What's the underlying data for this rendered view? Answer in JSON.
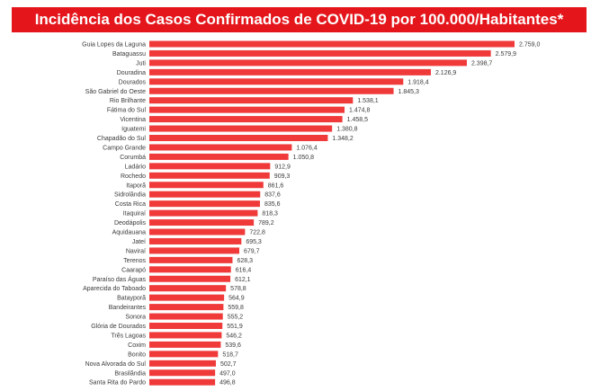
{
  "title": "Incidência dos Casos Confirmados de COVID-19 por 100.000/Habitantes*",
  "colors": {
    "title_bg": "#e4161c",
    "bar": "#f03a3a",
    "text": "#3a3a3a"
  },
  "chart_data": {
    "type": "bar",
    "orientation": "horizontal",
    "title": "Incidência dos Casos Confirmados de COVID-19 por 100.000/Habitantes*",
    "xlabel": "",
    "ylabel": "",
    "grid": false,
    "xlim": [
      0,
      2900
    ],
    "categories": [
      "Guia Lopes da Laguna",
      "Bataguassu",
      "Juti",
      "Douradina",
      "Dourados",
      "São Gabriel do Oeste",
      "Rio Brilhante",
      "Fátima do Sul",
      "Vicentina",
      "Iguatemi",
      "Chapadão do Sul",
      "Campo Grande",
      "Corumbá",
      "Ladário",
      "Rochedo",
      "Itaporã",
      "Sidrolândia",
      "Costa Rica",
      "Itaquiraí",
      "Deodápolis",
      "Aquidauana",
      "Jateí",
      "Naviraí",
      "Terenos",
      "Caarapó",
      "Paraíso das Águas",
      "Aparecida do Taboado",
      "Batayporã",
      "Bandeirantes",
      "Sonora",
      "Glória de Dourados",
      "Três Lagoas",
      "Coxim",
      "Bonito",
      "Nova Alvorada do Sul",
      "Brasilândia",
      "Santa Rita do Pardo"
    ],
    "values": [
      2759.0,
      2579.9,
      2398.7,
      2126.9,
      1918.4,
      1845.3,
      1538.1,
      1474.8,
      1458.5,
      1380.8,
      1348.2,
      1076.4,
      1050.8,
      912.9,
      909.3,
      861.6,
      837.6,
      835.6,
      818.3,
      789.2,
      722.8,
      695.3,
      679.7,
      628.3,
      616.4,
      612.1,
      578.8,
      564.9,
      559.8,
      555.2,
      551.9,
      546.2,
      539.6,
      518.7,
      502.7,
      497.0,
      496.8
    ],
    "value_labels": [
      "2.759,0",
      "2.579,9",
      "2.398,7",
      "2.126,9",
      "1.918,4",
      "1.845,3",
      "1.538,1",
      "1.474,8",
      "1.458,5",
      "1.380,8",
      "1.348,2",
      "1.076,4",
      "1.050,8",
      "912,9",
      "909,3",
      "861,6",
      "837,6",
      "835,6",
      "818,3",
      "789,2",
      "722,8",
      "695,3",
      "679,7",
      "628,3",
      "616,4",
      "612,1",
      "578,8",
      "564,9",
      "559,8",
      "555,2",
      "551,9",
      "546,2",
      "539,6",
      "518,7",
      "502,7",
      "497,0",
      "496,8"
    ]
  }
}
